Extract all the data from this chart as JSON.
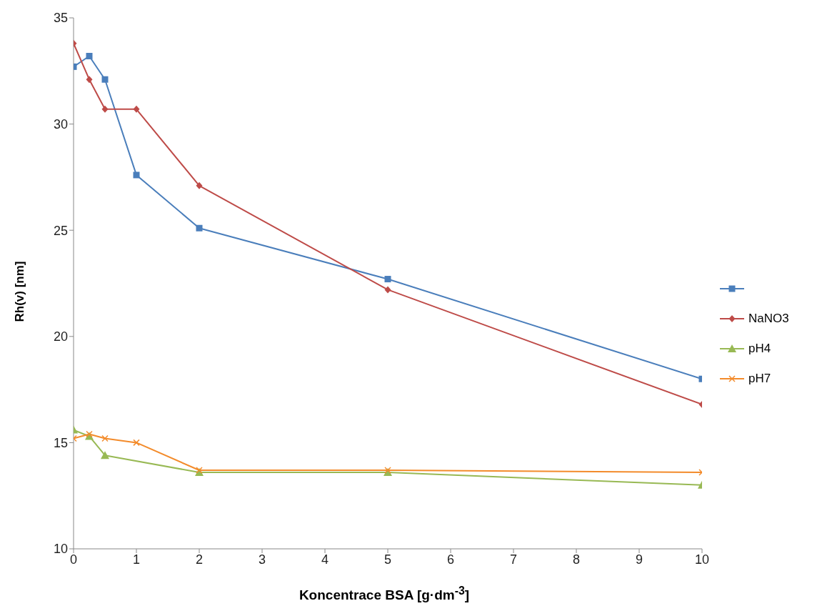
{
  "chart_data": {
    "type": "line",
    "xlabel": "Koncentrace BSA [g·dm$^{-3}$]",
    "ylabel": "Rh(v) [nm]",
    "xlim": [
      0,
      10
    ],
    "xticks": [
      0,
      1,
      2,
      3,
      4,
      5,
      6,
      7,
      8,
      9,
      10
    ],
    "ylim": [
      10,
      35
    ],
    "yticks": [
      10,
      15,
      20,
      25,
      30,
      35
    ],
    "grid": false,
    "legend": "right",
    "series": [
      {
        "color": "#4a7ebb",
        "marker": "square",
        "x": [
          0,
          0.25,
          0.5,
          1,
          2,
          5,
          10
        ],
        "values": [
          32.7,
          33.2,
          32.1,
          27.6,
          25.1,
          22.7,
          18.0
        ]
      },
      {
        "name": "NaNO3",
        "color": "#be4b48",
        "marker": "diamond",
        "x": [
          0,
          0.25,
          0.5,
          1,
          2,
          5,
          10
        ],
        "values": [
          33.8,
          32.1,
          30.7,
          30.7,
          27.1,
          22.2,
          16.8
        ]
      },
      {
        "name": "pH4",
        "color": "#98b954",
        "marker": "triangle",
        "x": [
          0,
          0.25,
          0.5,
          2,
          5,
          10
        ],
        "values": [
          15.6,
          15.3,
          14.4,
          13.6,
          13.6,
          13.0
        ]
      },
      {
        "name": "pH7",
        "color": "#f38b2b",
        "marker": "cross",
        "x": [
          0,
          0.25,
          0.5,
          1,
          2,
          5,
          10
        ],
        "values": [
          15.2,
          15.4,
          15.2,
          15.0,
          13.7,
          13.7,
          13.6
        ]
      }
    ]
  }
}
